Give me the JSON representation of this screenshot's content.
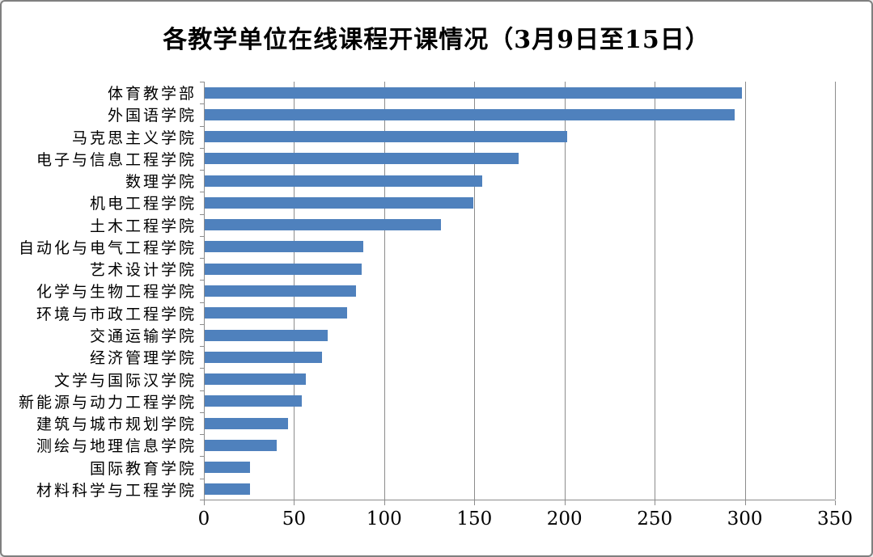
{
  "chart_data": {
    "type": "bar",
    "orientation": "horizontal",
    "title": "各教学单位在线课程开课情况（3月9日至15日）",
    "categories": [
      "体育教学部",
      "外国语学院",
      "马克思主义学院",
      "电子与信息工程学院",
      "数理学院",
      "机电工程学院",
      "土木工程学院",
      "自动化与电气工程学院",
      "艺术设计学院",
      "化学与生物工程学院",
      "环境与市政工程学院",
      "交通运输学院",
      "经济管理学院",
      "文学与国际汉学院",
      "新能源与动力工程学院",
      "建筑与城市规划学院",
      "测绘与地理信息学院",
      "国际教育学院",
      "材料科学与工程学院"
    ],
    "values": [
      298,
      294,
      201,
      174,
      154,
      149,
      131,
      88,
      87,
      84,
      79,
      68,
      65,
      56,
      54,
      46,
      40,
      25,
      25
    ],
    "xlabel": "",
    "ylabel": "",
    "xlim": [
      0,
      350
    ],
    "xticks": [
      0,
      50,
      100,
      150,
      200,
      250,
      300,
      350
    ],
    "grid": true,
    "legend": false,
    "bar_color": "#4f81bd",
    "gridline_color": "#8c8c8c",
    "axis_color": "#8c8c8c",
    "background_color": "#ffffff",
    "border_color": "#7f7f7f"
  }
}
